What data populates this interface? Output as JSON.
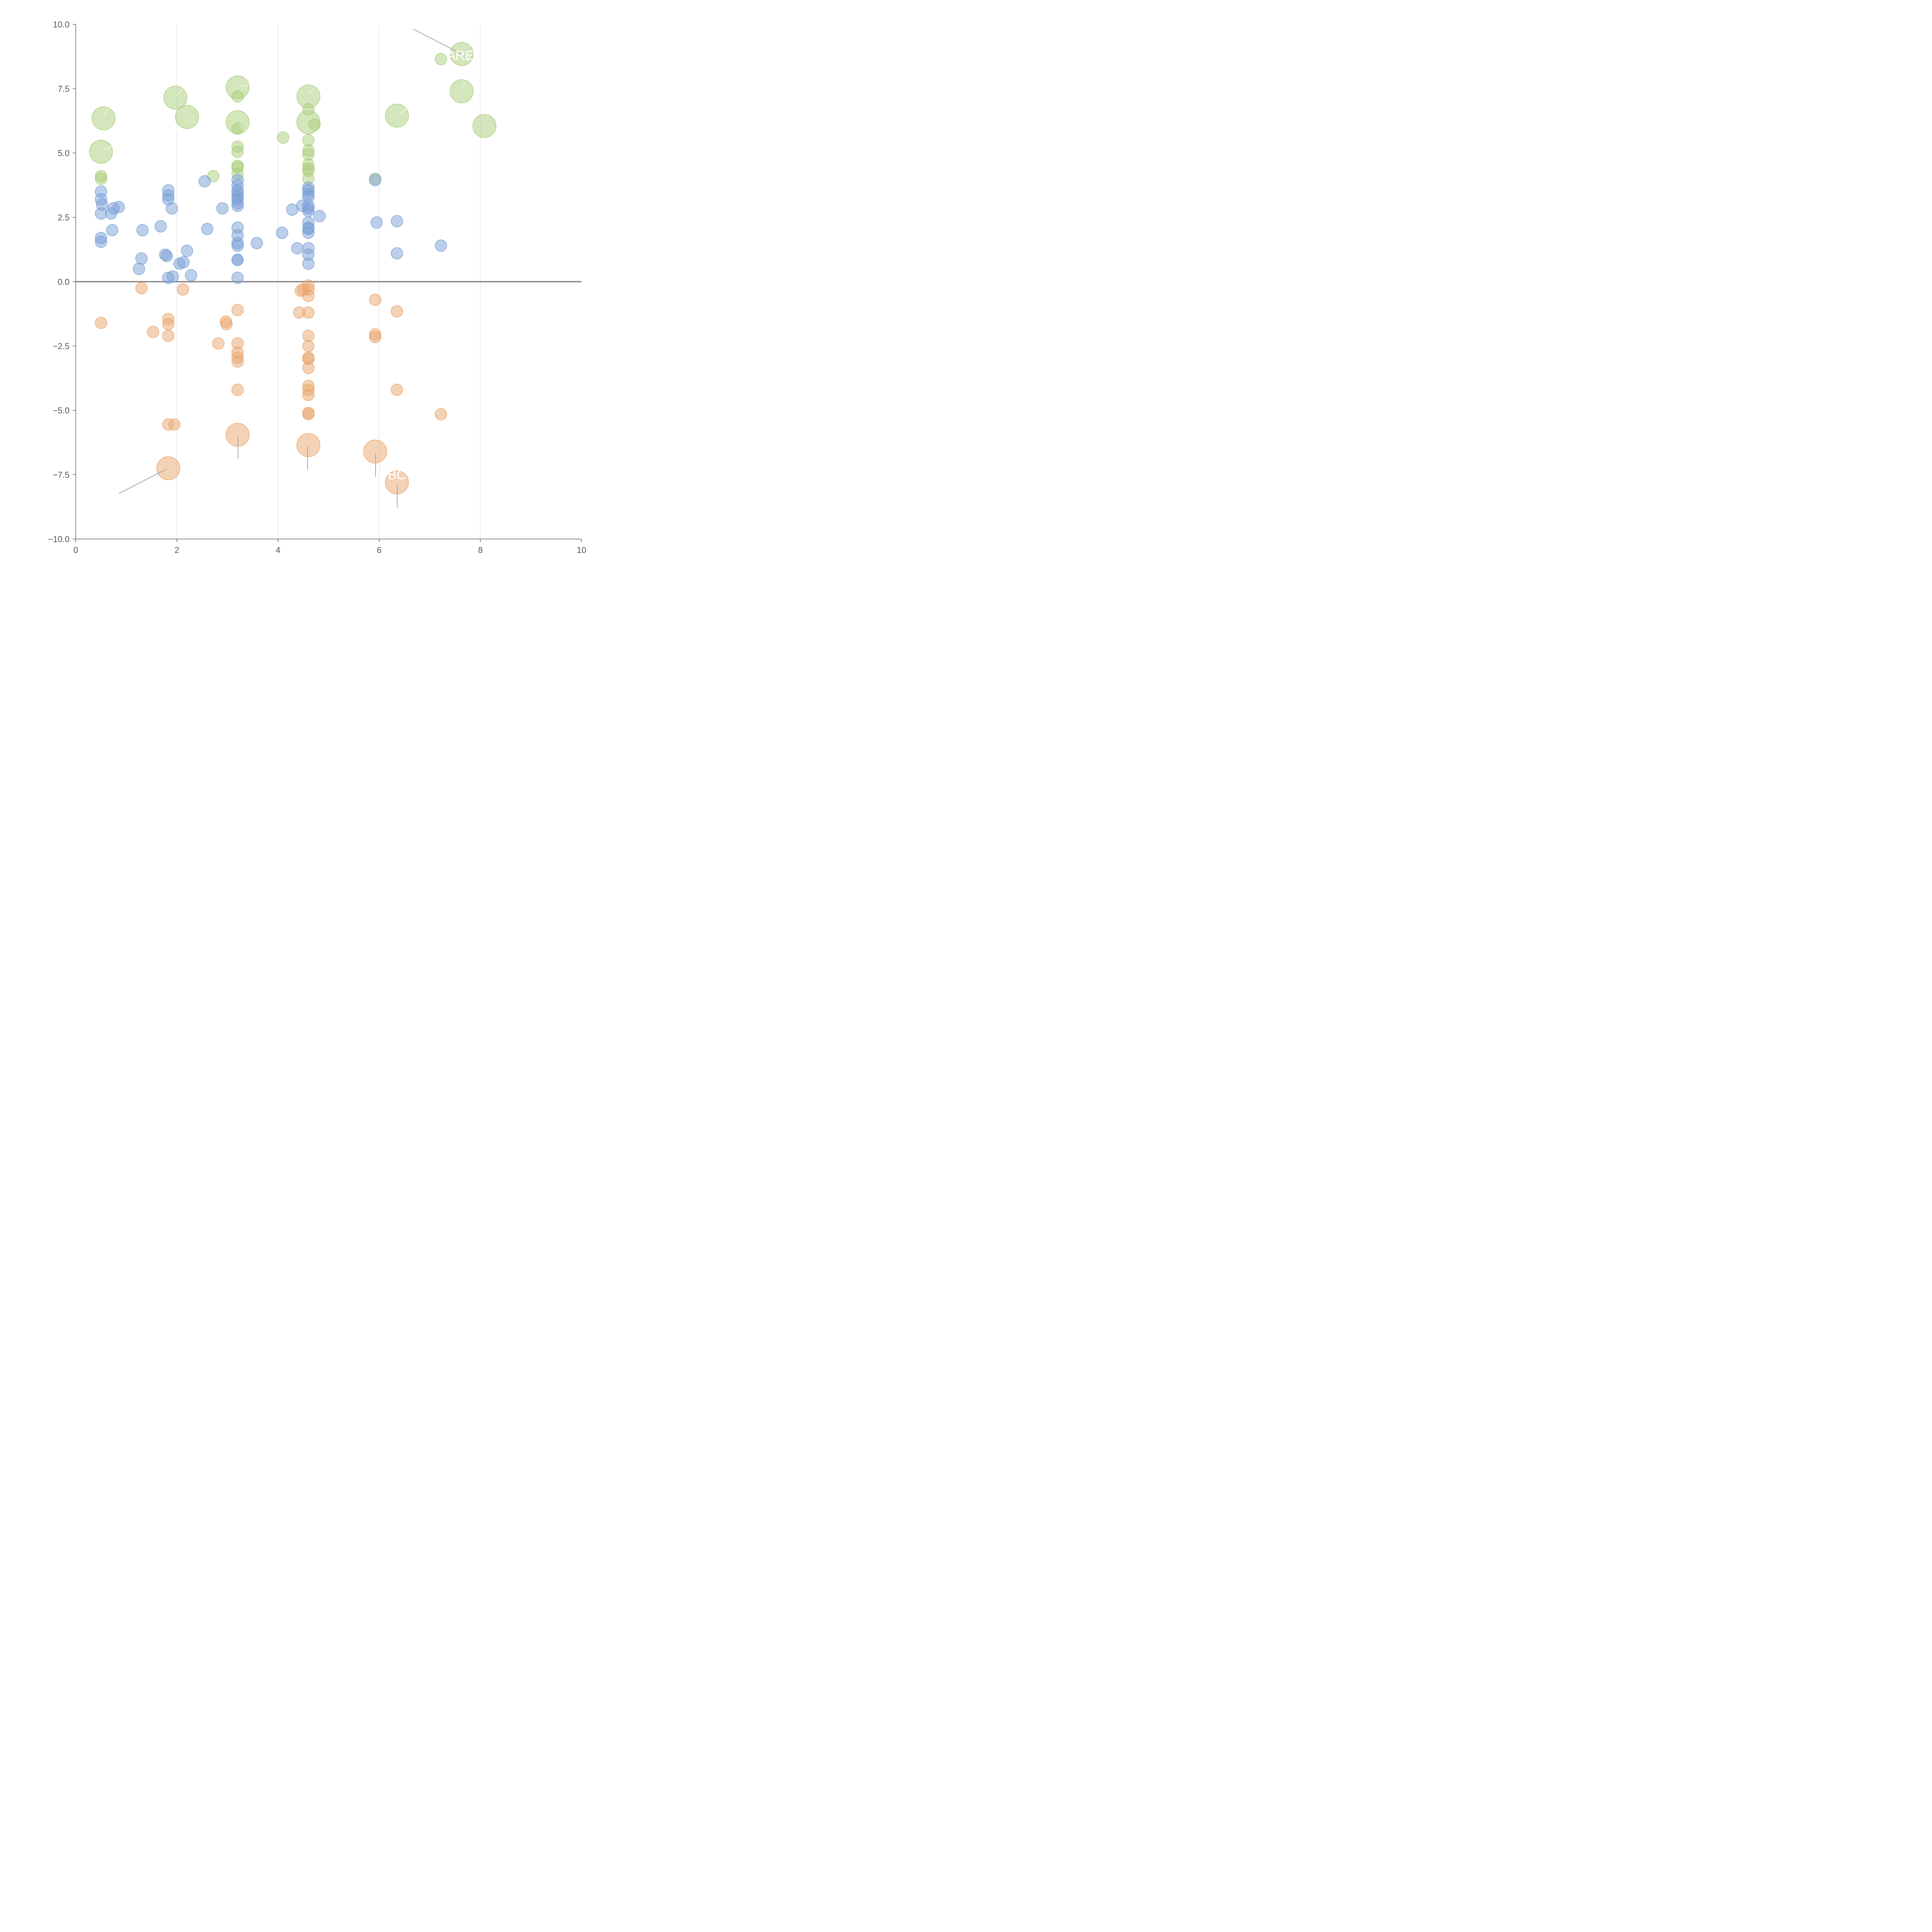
{
  "chart_data": {
    "type": "scatter",
    "title": "",
    "xlabel": "",
    "ylabel": "",
    "xlim": [
      0,
      10
    ],
    "ylim": [
      -10,
      10
    ],
    "x_ticks": [
      "0",
      "2",
      "4",
      "6",
      "8",
      "10"
    ],
    "y_ticks": [
      "10.0",
      "7.5",
      "5.0",
      "2.5",
      "0.0",
      "−2.5",
      "−5.0",
      "−7.5",
      "−10.0"
    ],
    "x_tick_values": [
      0,
      2,
      4,
      6,
      8,
      10
    ],
    "y_tick_values": [
      10,
      7.5,
      5,
      2.5,
      0,
      -2.5,
      -5,
      -7.5,
      -10
    ],
    "grid": "vertical",
    "zero_line": 0,
    "colors": {
      "green": "#a9cd7a",
      "blue": "#7aa0d6",
      "orange": "#eaa56e"
    },
    "annotations": [
      {
        "text": "ARE",
        "x": 7.6,
        "y": 8.8
      },
      {
        "text": "BC",
        "x": 6.35,
        "y": -7.5
      }
    ],
    "series": [
      {
        "color": "green",
        "points": [
          [
            0.55,
            6.35,
            3
          ],
          [
            0.5,
            5.05,
            3
          ],
          [
            0.5,
            4.1,
            1
          ],
          [
            0.5,
            4.0,
            1
          ],
          [
            1.97,
            7.15,
            3
          ],
          [
            2.2,
            6.4,
            3
          ],
          [
            2.72,
            4.1,
            1
          ],
          [
            3.2,
            7.55,
            3
          ],
          [
            3.2,
            7.2,
            1
          ],
          [
            3.2,
            6.2,
            3
          ],
          [
            3.2,
            5.95,
            1
          ],
          [
            3.2,
            5.25,
            1
          ],
          [
            3.2,
            5.05,
            1
          ],
          [
            3.2,
            4.5,
            1
          ],
          [
            3.2,
            4.45,
            1
          ],
          [
            3.2,
            4.2,
            1
          ],
          [
            4.1,
            5.6,
            1
          ],
          [
            4.6,
            7.2,
            3
          ],
          [
            4.6,
            6.7,
            1
          ],
          [
            4.6,
            6.2,
            3
          ],
          [
            4.72,
            6.1,
            1
          ],
          [
            4.6,
            5.5,
            1
          ],
          [
            4.6,
            5.1,
            1
          ],
          [
            4.6,
            4.95,
            1
          ],
          [
            4.6,
            4.55,
            1
          ],
          [
            4.6,
            4.4,
            1
          ],
          [
            4.6,
            4.3,
            1
          ],
          [
            4.6,
            4.0,
            1
          ],
          [
            5.92,
            4.0,
            1
          ],
          [
            6.35,
            6.45,
            3
          ],
          [
            7.22,
            8.65,
            1
          ],
          [
            7.63,
            8.85,
            3
          ],
          [
            7.63,
            7.4,
            3
          ],
          [
            8.08,
            6.05,
            3
          ]
        ]
      },
      {
        "color": "blue",
        "points": [
          [
            0.5,
            3.5,
            1
          ],
          [
            0.5,
            3.2,
            1
          ],
          [
            0.52,
            3.0,
            1
          ],
          [
            0.5,
            2.65,
            1
          ],
          [
            0.7,
            2.65,
            1
          ],
          [
            0.75,
            2.85,
            1
          ],
          [
            0.85,
            2.9,
            1
          ],
          [
            0.5,
            1.7,
            1
          ],
          [
            0.5,
            1.55,
            1
          ],
          [
            0.72,
            2.0,
            1
          ],
          [
            1.32,
            2.0,
            1
          ],
          [
            1.3,
            0.9,
            1
          ],
          [
            1.25,
            0.5,
            1
          ],
          [
            1.68,
            2.15,
            1
          ],
          [
            1.77,
            1.05,
            1
          ],
          [
            1.8,
            1.0,
            1
          ],
          [
            1.83,
            3.55,
            1
          ],
          [
            1.83,
            3.35,
            1
          ],
          [
            1.83,
            3.2,
            1
          ],
          [
            1.9,
            2.85,
            1
          ],
          [
            1.83,
            0.15,
            1
          ],
          [
            1.92,
            0.2,
            1
          ],
          [
            2.05,
            0.7,
            1
          ],
          [
            2.13,
            0.75,
            1
          ],
          [
            2.2,
            1.2,
            1
          ],
          [
            2.28,
            0.25,
            1
          ],
          [
            2.55,
            3.9,
            1
          ],
          [
            2.6,
            2.05,
            1
          ],
          [
            2.9,
            2.85,
            1
          ],
          [
            3.2,
            3.95,
            1
          ],
          [
            3.2,
            3.75,
            1
          ],
          [
            3.2,
            3.55,
            1
          ],
          [
            3.2,
            3.45,
            1
          ],
          [
            3.2,
            3.3,
            1
          ],
          [
            3.2,
            3.2,
            1
          ],
          [
            3.2,
            3.05,
            1
          ],
          [
            3.2,
            2.95,
            1
          ],
          [
            3.2,
            2.1,
            1
          ],
          [
            3.2,
            1.8,
            1
          ],
          [
            3.2,
            1.5,
            1
          ],
          [
            3.2,
            1.4,
            1
          ],
          [
            3.2,
            0.85,
            1
          ],
          [
            3.2,
            0.85,
            1
          ],
          [
            3.2,
            0.15,
            1
          ],
          [
            3.58,
            1.5,
            1
          ],
          [
            4.08,
            1.9,
            1
          ],
          [
            4.28,
            2.8,
            1
          ],
          [
            4.38,
            1.3,
            1
          ],
          [
            4.48,
            2.95,
            1
          ],
          [
            4.6,
            3.65,
            1
          ],
          [
            4.6,
            3.55,
            1
          ],
          [
            4.6,
            3.4,
            1
          ],
          [
            4.6,
            3.3,
            1
          ],
          [
            4.6,
            2.95,
            1
          ],
          [
            4.6,
            2.85,
            1
          ],
          [
            4.6,
            2.75,
            1
          ],
          [
            4.6,
            2.3,
            1
          ],
          [
            4.6,
            2.1,
            1
          ],
          [
            4.6,
            2.05,
            1
          ],
          [
            4.6,
            1.9,
            1
          ],
          [
            4.6,
            1.3,
            1
          ],
          [
            4.6,
            1.05,
            1
          ],
          [
            4.6,
            0.7,
            1
          ],
          [
            4.82,
            2.55,
            1
          ],
          [
            5.92,
            3.95,
            1
          ],
          [
            5.95,
            2.3,
            1
          ],
          [
            6.35,
            2.35,
            1
          ],
          [
            6.35,
            1.1,
            1
          ],
          [
            7.22,
            1.4,
            1
          ]
        ]
      },
      {
        "color": "orange",
        "points": [
          [
            0.5,
            -1.6,
            1
          ],
          [
            1.3,
            -0.25,
            1
          ],
          [
            1.53,
            -1.95,
            1
          ],
          [
            1.83,
            -1.45,
            1
          ],
          [
            1.83,
            -1.65,
            1
          ],
          [
            1.83,
            -2.1,
            1
          ],
          [
            1.83,
            -5.55,
            1
          ],
          [
            1.95,
            -5.55,
            1
          ],
          [
            1.83,
            -7.25,
            3
          ],
          [
            2.12,
            -0.3,
            1
          ],
          [
            2.82,
            -2.4,
            1
          ],
          [
            2.97,
            -1.55,
            1
          ],
          [
            2.98,
            -1.65,
            1
          ],
          [
            3.2,
            -1.1,
            1
          ],
          [
            3.2,
            -2.4,
            1
          ],
          [
            3.2,
            -2.75,
            1
          ],
          [
            3.2,
            -2.95,
            1
          ],
          [
            3.2,
            -3.1,
            1
          ],
          [
            3.2,
            -4.2,
            1
          ],
          [
            3.2,
            -5.95,
            3
          ],
          [
            4.42,
            -1.2,
            1
          ],
          [
            4.45,
            -0.35,
            1
          ],
          [
            4.5,
            -0.3,
            1
          ],
          [
            4.6,
            -0.15,
            1
          ],
          [
            4.6,
            -0.3,
            1
          ],
          [
            4.6,
            -0.55,
            1
          ],
          [
            4.6,
            -1.2,
            1
          ],
          [
            4.6,
            -2.1,
            1
          ],
          [
            4.6,
            -2.5,
            1
          ],
          [
            4.6,
            -2.95,
            1
          ],
          [
            4.6,
            -3.0,
            1
          ],
          [
            4.6,
            -3.35,
            1
          ],
          [
            4.6,
            -4.05,
            1
          ],
          [
            4.6,
            -4.2,
            1
          ],
          [
            4.6,
            -4.4,
            1
          ],
          [
            4.6,
            -5.1,
            1
          ],
          [
            4.6,
            -5.15,
            1
          ],
          [
            4.6,
            -6.35,
            3
          ],
          [
            5.92,
            -0.7,
            1
          ],
          [
            5.92,
            -2.05,
            1
          ],
          [
            5.92,
            -2.15,
            1
          ],
          [
            5.92,
            -6.6,
            3
          ],
          [
            6.35,
            -1.15,
            1
          ],
          [
            6.35,
            -4.2,
            1
          ],
          [
            6.35,
            -7.8,
            2
          ],
          [
            7.22,
            -5.15,
            1
          ]
        ]
      }
    ]
  }
}
